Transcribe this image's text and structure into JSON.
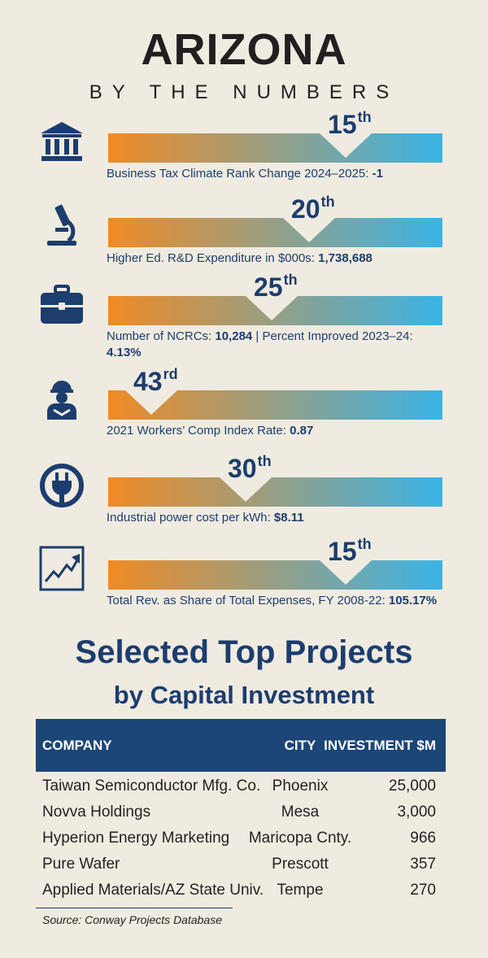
{
  "header": {
    "title": "ARIZONA",
    "subtitle": "BY THE NUMBERS"
  },
  "metrics": [
    {
      "icon": "bank-building-icon",
      "rank": "15",
      "suffix": "th",
      "rank_position": 0.71,
      "label": "Business Tax Climate Rank Change 2024–2025:",
      "value": "-1"
    },
    {
      "icon": "microscope-icon",
      "rank": "20",
      "suffix": "th",
      "rank_position": 0.6,
      "label": "Higher Ed. R&D Expenditure in $000s:",
      "value": "1,738,688"
    },
    {
      "icon": "briefcase-icon",
      "rank": "25",
      "suffix": "th",
      "rank_position": 0.49,
      "label": "Number of NCRCs:",
      "value": "10,284",
      "label2": " | Percent Improved 2023–24:",
      "value2": "4.13%"
    },
    {
      "icon": "construction-worker-icon",
      "rank": "43",
      "suffix": "rd",
      "rank_position": 0.13,
      "label": "2021 Workers’ Comp Index Rate:",
      "value": "0.87"
    },
    {
      "icon": "power-plug-icon",
      "rank": "30",
      "suffix": "th",
      "rank_position": 0.41,
      "label": "Industrial power cost per kWh:",
      "value": "$8.11"
    },
    {
      "icon": "trend-chart-icon",
      "rank": "15",
      "suffix": "th",
      "rank_position": 0.71,
      "label": "Total Rev. as Share of Total Expenses, FY 2008-22:",
      "value": "105.17%"
    }
  ],
  "projects": {
    "title": "Selected Top Projects",
    "subtitle": "by Capital Investment",
    "columns": [
      "COMPANY",
      "CITY",
      "INVESTMENT $M"
    ],
    "rows": [
      [
        "Taiwan Semiconductor Mfg. Co.",
        "Phoenix",
        "25,000"
      ],
      [
        "Novva Holdings",
        "Mesa",
        "3,000"
      ],
      [
        "Hyperion Energy Marketing",
        "Maricopa Cnty.",
        "966"
      ],
      [
        "Pure Wafer",
        "Prescott",
        "357"
      ],
      [
        "Applied Materials/AZ State Univ.",
        "Tempe",
        "270"
      ]
    ],
    "source": "Source: Conway Projects Database"
  },
  "colors": {
    "navy": "#1c3d6e",
    "orange": "#f08a24",
    "sky": "#3ab4e8",
    "background": "#f0ebe0"
  }
}
